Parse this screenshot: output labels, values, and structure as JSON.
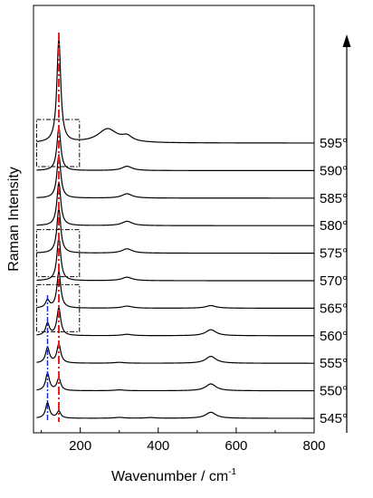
{
  "chart_data": {
    "type": "line",
    "xlabel": "Wavenumber / cm",
    "xlabel_superscript": "-1",
    "ylabel": "Raman Intensity",
    "xlim": [
      80,
      800
    ],
    "x_ticks": [
      "200",
      "400",
      "600",
      "800"
    ],
    "x_tick_values": [
      200,
      400,
      600,
      800
    ],
    "y_ticks": [],
    "grid": false,
    "reference_lines": [
      {
        "x": 145,
        "style": "dash-dot",
        "color": "#e8201e"
      },
      {
        "x": 116,
        "style": "dash-dot",
        "color": "#1a2fbf"
      }
    ],
    "highlight_boxes": [
      {
        "series": "595°",
        "x_range": [
          88,
          198
        ]
      },
      {
        "series": "575°",
        "x_range": [
          88,
          198
        ]
      },
      {
        "series": "565°",
        "x_range": [
          88,
          198
        ]
      }
    ],
    "arrow": "upward, right side",
    "series": [
      {
        "name": "545°",
        "peaks": [
          [
            116,
            0.9
          ],
          [
            145,
            0.4
          ],
          [
            300,
            0.05
          ],
          [
            380,
            0.04
          ],
          [
            535,
            0.35
          ]
        ]
      },
      {
        "name": "550°",
        "peaks": [
          [
            116,
            1.0
          ],
          [
            145,
            0.7
          ],
          [
            300,
            0.05
          ],
          [
            535,
            0.4
          ]
        ]
      },
      {
        "name": "555°",
        "peaks": [
          [
            116,
            0.9
          ],
          [
            145,
            1.1
          ],
          [
            300,
            0.05
          ],
          [
            535,
            0.4
          ]
        ]
      },
      {
        "name": "560°",
        "peaks": [
          [
            116,
            0.7
          ],
          [
            145,
            1.6
          ],
          [
            320,
            0.08
          ],
          [
            535,
            0.35
          ]
        ]
      },
      {
        "name": "565°",
        "peaks": [
          [
            116,
            0.45
          ],
          [
            145,
            2.1
          ],
          [
            320,
            0.12
          ],
          [
            535,
            0.15
          ]
        ]
      },
      {
        "name": "570°",
        "peaks": [
          [
            145,
            2.5
          ],
          [
            320,
            0.2
          ]
        ]
      },
      {
        "name": "575°",
        "peaks": [
          [
            145,
            2.6
          ],
          [
            320,
            0.25
          ]
        ]
      },
      {
        "name": "580°",
        "peaks": [
          [
            145,
            2.5
          ],
          [
            320,
            0.25
          ]
        ]
      },
      {
        "name": "585°",
        "peaks": [
          [
            145,
            2.5
          ],
          [
            320,
            0.25
          ]
        ]
      },
      {
        "name": "590°",
        "peaks": [
          [
            145,
            2.5
          ],
          [
            320,
            0.25
          ]
        ]
      },
      {
        "name": "595°",
        "peaks": [
          [
            145,
            6.0
          ],
          [
            270,
            0.8
          ],
          [
            320,
            0.3
          ]
        ]
      }
    ],
    "colors": {
      "line": "#000000",
      "red_ref": "#e8201e",
      "blue_ref": "#1a2fbf",
      "box": "#000000"
    }
  }
}
